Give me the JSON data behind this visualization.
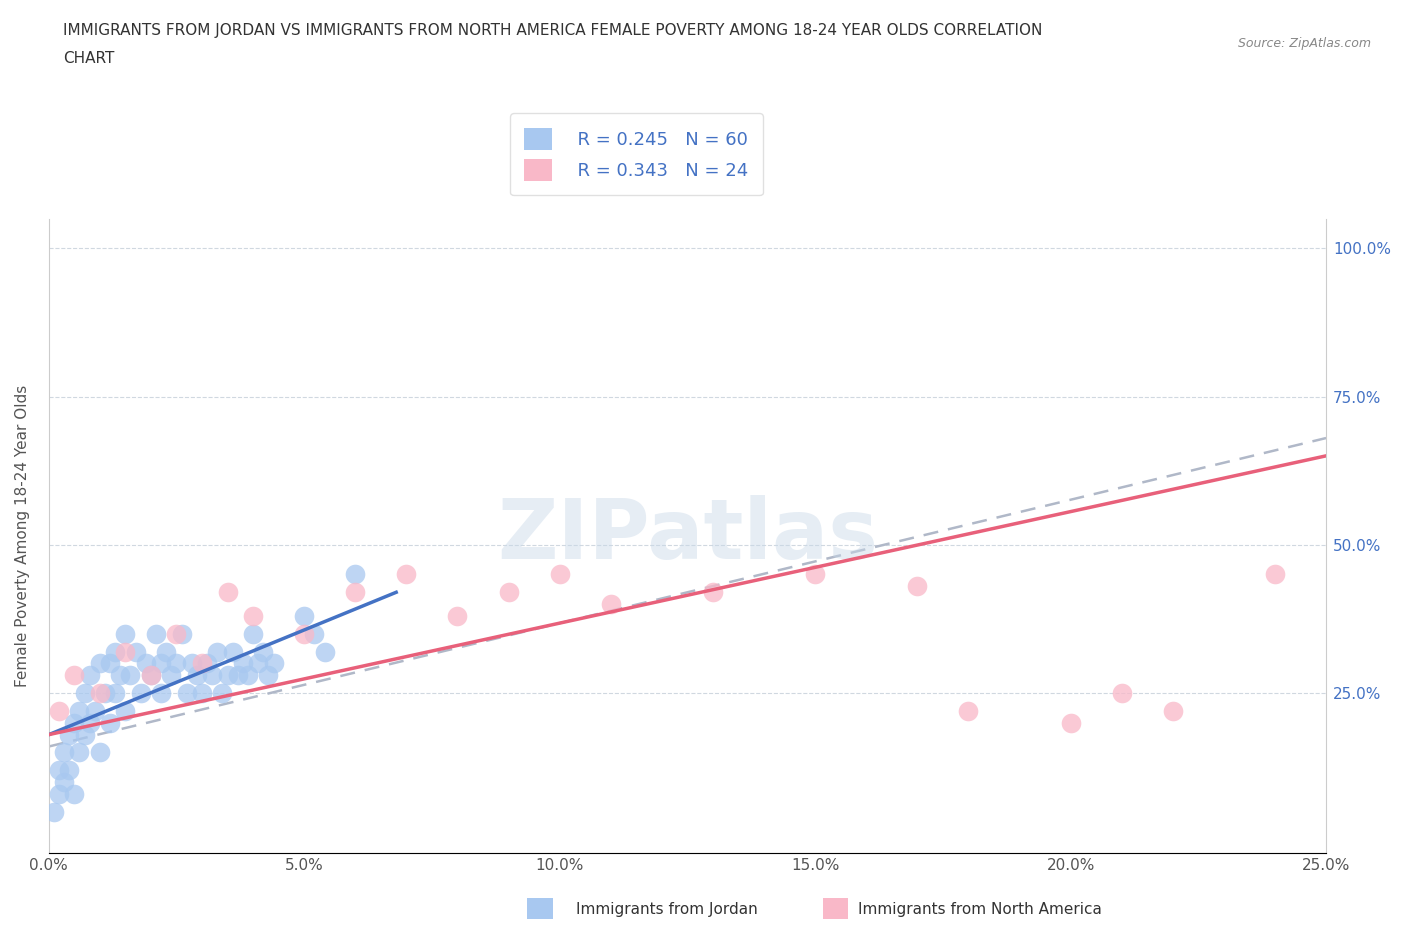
{
  "title_line1": "IMMIGRANTS FROM JORDAN VS IMMIGRANTS FROM NORTH AMERICA FEMALE POVERTY AMONG 18-24 YEAR OLDS CORRELATION",
  "title_line2": "CHART",
  "source": "Source: ZipAtlas.com",
  "ylabel": "Female Poverty Among 18-24 Year Olds",
  "xlim": [
    0.0,
    0.25
  ],
  "ylim": [
    -0.02,
    1.05
  ],
  "xtick_labels": [
    "0.0%",
    "5.0%",
    "10.0%",
    "15.0%",
    "20.0%",
    "25.0%"
  ],
  "xtick_vals": [
    0.0,
    0.05,
    0.1,
    0.15,
    0.2,
    0.25
  ],
  "ytick_labels": [
    "25.0%",
    "50.0%",
    "75.0%",
    "100.0%"
  ],
  "ytick_vals": [
    0.25,
    0.5,
    0.75,
    1.0
  ],
  "legend_r1": "R = 0.245",
  "legend_n1": "N = 60",
  "legend_r2": "R = 0.343",
  "legend_n2": "N = 24",
  "color_jordan": "#a8c8f0",
  "color_north_america": "#f9b8c8",
  "color_jordan_line": "#4472c4",
  "color_north_america_line": "#e8607a",
  "color_dashed_line": "#b0b8c8",
  "watermark_text": "ZIPatlas",
  "label_jordan": "Immigrants from Jordan",
  "label_north_america": "Immigrants from North America",
  "jordan_x": [
    0.001,
    0.002,
    0.002,
    0.003,
    0.003,
    0.004,
    0.004,
    0.005,
    0.005,
    0.006,
    0.006,
    0.007,
    0.007,
    0.008,
    0.008,
    0.009,
    0.01,
    0.01,
    0.011,
    0.012,
    0.012,
    0.013,
    0.013,
    0.014,
    0.015,
    0.015,
    0.016,
    0.017,
    0.018,
    0.019,
    0.02,
    0.021,
    0.022,
    0.022,
    0.023,
    0.024,
    0.025,
    0.026,
    0.027,
    0.028,
    0.029,
    0.03,
    0.031,
    0.032,
    0.033,
    0.034,
    0.035,
    0.036,
    0.037,
    0.038,
    0.039,
    0.04,
    0.041,
    0.042,
    0.043,
    0.044,
    0.05,
    0.052,
    0.054,
    0.06
  ],
  "jordan_y": [
    0.05,
    0.08,
    0.12,
    0.1,
    0.15,
    0.12,
    0.18,
    0.08,
    0.2,
    0.15,
    0.22,
    0.18,
    0.25,
    0.2,
    0.28,
    0.22,
    0.15,
    0.3,
    0.25,
    0.2,
    0.3,
    0.25,
    0.32,
    0.28,
    0.22,
    0.35,
    0.28,
    0.32,
    0.25,
    0.3,
    0.28,
    0.35,
    0.3,
    0.25,
    0.32,
    0.28,
    0.3,
    0.35,
    0.25,
    0.3,
    0.28,
    0.25,
    0.3,
    0.28,
    0.32,
    0.25,
    0.28,
    0.32,
    0.28,
    0.3,
    0.28,
    0.35,
    0.3,
    0.32,
    0.28,
    0.3,
    0.38,
    0.35,
    0.32,
    0.45
  ],
  "na_x": [
    0.002,
    0.005,
    0.01,
    0.015,
    0.02,
    0.025,
    0.03,
    0.035,
    0.04,
    0.05,
    0.06,
    0.07,
    0.08,
    0.09,
    0.1,
    0.11,
    0.13,
    0.15,
    0.17,
    0.18,
    0.2,
    0.21,
    0.22,
    0.24
  ],
  "na_y": [
    0.22,
    0.28,
    0.25,
    0.32,
    0.28,
    0.35,
    0.3,
    0.42,
    0.38,
    0.35,
    0.42,
    0.45,
    0.38,
    0.42,
    0.45,
    0.4,
    0.42,
    0.45,
    0.43,
    0.22,
    0.2,
    0.25,
    0.22,
    0.45
  ],
  "jordan_line_x": [
    0.0,
    0.068
  ],
  "jordan_line_y": [
    0.18,
    0.42
  ],
  "na_line_x": [
    0.0,
    0.25
  ],
  "na_line_y": [
    0.18,
    0.65
  ],
  "dashed_line_x": [
    0.0,
    0.25
  ],
  "dashed_line_y": [
    0.16,
    0.68
  ]
}
